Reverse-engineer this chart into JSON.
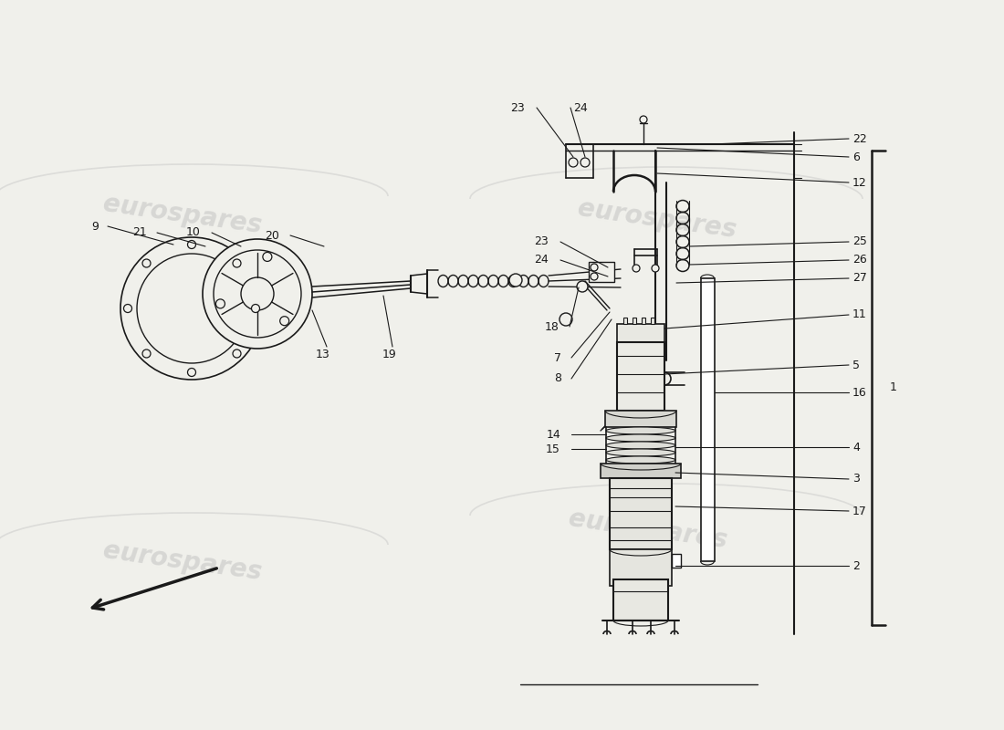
{
  "bg_color": "#f0f0eb",
  "line_color": "#1a1a1a",
  "watermark_color": "#bebebe",
  "watermark_text": "eurospares",
  "fig_w": 11.0,
  "fig_h": 8.0,
  "dpi": 100,
  "xlim": [
    0,
    1100
  ],
  "ylim": [
    0,
    800
  ],
  "fs": 9
}
